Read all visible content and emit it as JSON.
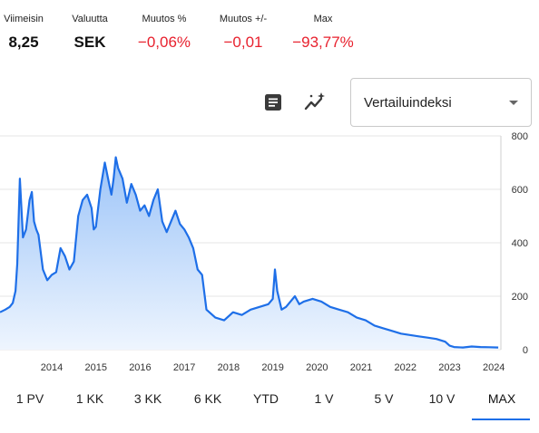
{
  "stats": [
    {
      "label": "Viimeisin",
      "value": "8,25",
      "negative": false
    },
    {
      "label": "Valuutta",
      "value": "SEK",
      "negative": false
    },
    {
      "label": "Muutos %",
      "value": "−0,06%",
      "negative": true
    },
    {
      "label": "Muutos +/-",
      "value": "−0,01",
      "negative": true
    },
    {
      "label": "Max",
      "value": "−93,77%",
      "negative": true
    }
  ],
  "toolbar": {
    "news_icon": "news-document-icon",
    "ai_icon": "sparkle-trend-icon",
    "compare_dropdown": {
      "selected": "Vertailuindeksi"
    }
  },
  "colors": {
    "accent": "#1e6fe8",
    "negative": "#e8212e",
    "grid": "#e6e6e6",
    "area_top": "#9cc4f8",
    "area_bottom": "#eef5fe"
  },
  "chart_data": {
    "type": "area",
    "title": "",
    "xlabel": "",
    "ylabel": "",
    "ylim": [
      0,
      800
    ],
    "y_ticks": [
      "0",
      "200",
      "400",
      "600",
      "800"
    ],
    "x_ticks": [
      "2014",
      "2015",
      "2016",
      "2017",
      "2018",
      "2019",
      "2020",
      "2021",
      "2022",
      "2023",
      "2024"
    ],
    "grid": true,
    "series": [
      {
        "x": [
          2013.33,
          2013.45,
          2013.55,
          2013.62,
          2013.68,
          2013.72,
          2013.78,
          2013.85,
          2013.92,
          2014.0,
          2014.05,
          2014.1,
          2014.15,
          2014.2,
          2014.3,
          2014.4,
          2014.5,
          2014.6,
          2014.7,
          2014.8,
          2014.9,
          2015.0,
          2015.1,
          2015.2,
          2015.3,
          2015.4,
          2015.45,
          2015.5,
          2015.6,
          2015.7,
          2015.8,
          2015.85,
          2015.9,
          2015.95,
          2016.0,
          2016.1,
          2016.2,
          2016.3,
          2016.4,
          2016.5,
          2016.6,
          2016.7,
          2016.8,
          2016.9,
          2017.0,
          2017.1,
          2017.2,
          2017.3,
          2017.4,
          2017.5,
          2017.6,
          2017.7,
          2017.8,
          2017.9,
          2018.0,
          2018.2,
          2018.4,
          2018.6,
          2018.8,
          2019.0,
          2019.2,
          2019.4,
          2019.5,
          2019.55,
          2019.6,
          2019.7,
          2019.8,
          2019.9,
          2020.0,
          2020.1,
          2020.2,
          2020.4,
          2020.6,
          2020.8,
          2021.0,
          2021.2,
          2021.4,
          2021.6,
          2021.8,
          2022.0,
          2022.2,
          2022.4,
          2022.6,
          2022.8,
          2023.0,
          2023.2,
          2023.4,
          2023.5,
          2023.6,
          2023.8,
          2024.0,
          2024.2,
          2024.4,
          2024.6
        ],
        "y": [
          140,
          150,
          160,
          175,
          220,
          320,
          640,
          420,
          450,
          560,
          590,
          480,
          450,
          430,
          300,
          260,
          280,
          290,
          380,
          350,
          300,
          330,
          500,
          560,
          580,
          530,
          450,
          460,
          600,
          700,
          620,
          580,
          640,
          720,
          680,
          640,
          550,
          620,
          580,
          520,
          540,
          500,
          560,
          600,
          480,
          440,
          480,
          520,
          470,
          450,
          420,
          380,
          300,
          280,
          150,
          120,
          110,
          140,
          130,
          150,
          160,
          170,
          190,
          300,
          220,
          150,
          160,
          180,
          200,
          170,
          180,
          190,
          180,
          160,
          150,
          140,
          120,
          110,
          90,
          80,
          70,
          60,
          55,
          50,
          45,
          40,
          30,
          15,
          10,
          8,
          12,
          10,
          9,
          8
        ]
      }
    ]
  },
  "periods": [
    "1 PV",
    "1 KK",
    "3 KK",
    "6 KK",
    "YTD",
    "1 V",
    "5 V",
    "10 V",
    "MAX"
  ],
  "active_period": "MAX"
}
